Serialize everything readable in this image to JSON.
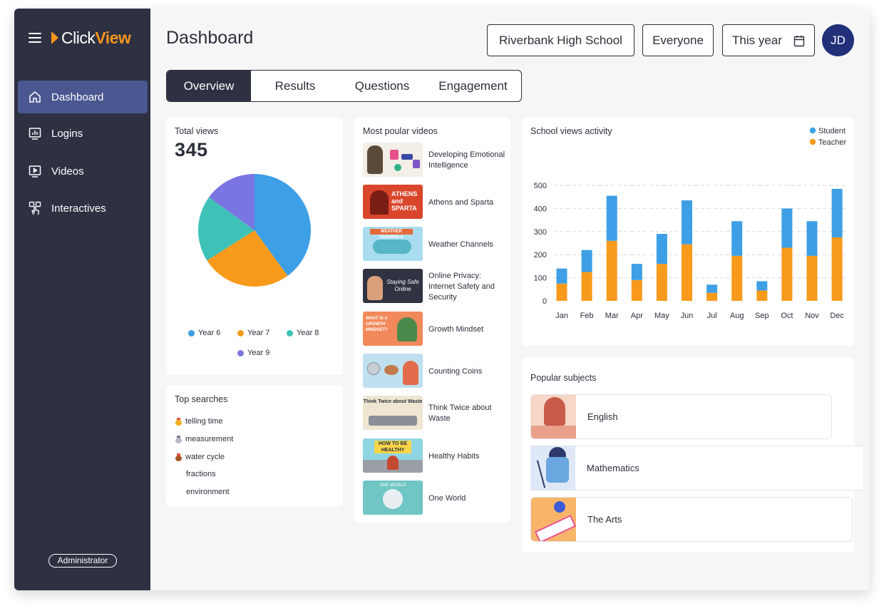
{
  "app": {
    "logo_prefix": "Click",
    "logo_suffix": "View",
    "menu_icon": "hamburger-icon"
  },
  "sidebar": {
    "items": [
      {
        "label": "Dashboard",
        "icon": "home-icon",
        "active": true
      },
      {
        "label": "Logins",
        "icon": "bar-chart-icon",
        "active": false
      },
      {
        "label": "Videos",
        "icon": "play-screen-icon",
        "active": false
      },
      {
        "label": "Interactives",
        "icon": "touch-icon",
        "active": false
      }
    ],
    "role_badge": "Administrator"
  },
  "header": {
    "title": "Dashboard",
    "school": "Riverbank High School",
    "audience": "Everyone",
    "period": "This year",
    "calendar_icon": "calendar-icon",
    "avatar_initials": "JD"
  },
  "tabs": [
    {
      "label": "Overview",
      "active": true
    },
    {
      "label": "Results",
      "active": false
    },
    {
      "label": "Questions",
      "active": false
    },
    {
      "label": "Engagement",
      "active": false
    }
  ],
  "total_views": {
    "title": "Total views",
    "value": "345",
    "legend": [
      {
        "label": "Year 6",
        "color": "#3d9fe6"
      },
      {
        "label": "Year 7",
        "color": "#f89a1c"
      },
      {
        "label": "Year 8",
        "color": "#3ec2b7"
      },
      {
        "label": "Year 9",
        "color": "#7b75e3"
      }
    ]
  },
  "top_searches": {
    "title": "Top searches",
    "items": [
      {
        "label": "telling time",
        "medal": "gold"
      },
      {
        "label": "measurement",
        "medal": "silver"
      },
      {
        "label": "water cycle",
        "medal": "bronze"
      },
      {
        "label": "fractions",
        "medal": ""
      },
      {
        "label": "environment",
        "medal": ""
      }
    ]
  },
  "popular_videos": {
    "title": "Most poular videos",
    "items": [
      {
        "title": "Developing Emotional Intelligence",
        "thumb_color": "#f3efe6"
      },
      {
        "title": "Athens and Sparta",
        "thumb_color": "#d9462c",
        "thumb_text": "ATHENS and SPARTA"
      },
      {
        "title": "Weather Channels",
        "thumb_color": "#a9dcef",
        "thumb_text": "WEATHER CHANNELS"
      },
      {
        "title": "Online Privacy: Internet Safety and Security",
        "thumb_color": "#2f3342",
        "thumb_text": "Staying Safe Online"
      },
      {
        "title": "Growth Mindset",
        "thumb_color": "#f2895a",
        "thumb_text": "WHAT IS A GROWTH MINDSET?"
      },
      {
        "title": "Counting Coins",
        "thumb_color": "#bfe0ef"
      },
      {
        "title": "Think Twice about Waste",
        "thumb_color": "#efe6d2",
        "thumb_text": "Think Twice about Waste"
      },
      {
        "title": "Healthy Habits",
        "thumb_color": "#8fd6e4",
        "thumb_text": "HOW TO BE HEALTHY"
      },
      {
        "title": "One World",
        "thumb_color": "#6fc6c4",
        "thumb_text": "ONE WORLD"
      }
    ]
  },
  "school_views": {
    "title": "School views activity"
  },
  "popular_subjects": {
    "title": "Popular subjects",
    "items": [
      {
        "label": "English",
        "thumb_color": "#f6d7c7"
      },
      {
        "label": "Mathematics",
        "thumb_color": "#dfe8f6"
      },
      {
        "label": "The Arts",
        "thumb_color": "#f8b56a"
      }
    ]
  },
  "chart_data": [
    {
      "type": "pie",
      "title": "",
      "labels": [
        "Year 6",
        "Year 7",
        "Year 8",
        "Year 9"
      ],
      "values": [
        40,
        26,
        19,
        15
      ],
      "colors": [
        "#3d9fe6",
        "#f89a1c",
        "#3ec2b7",
        "#7b75e3"
      ]
    },
    {
      "type": "bar",
      "stacked": true,
      "title": "School views activity",
      "categories": [
        "Jan",
        "Feb",
        "Mar",
        "Apr",
        "May",
        "Jun",
        "Jul",
        "Aug",
        "Sep",
        "Oct",
        "Nov",
        "Dec"
      ],
      "series": [
        {
          "name": "Teacher",
          "color": "#f89a1c",
          "values": [
            75,
            125,
            260,
            90,
            160,
            245,
            35,
            195,
            45,
            230,
            195,
            275
          ]
        },
        {
          "name": "Student",
          "color": "#3d9fe6",
          "values": [
            65,
            95,
            195,
            70,
            130,
            190,
            35,
            150,
            40,
            170,
            150,
            210
          ]
        }
      ],
      "yticks": [
        0,
        100,
        200,
        300,
        400,
        500
      ],
      "ylim": [
        0,
        500
      ],
      "grid": true,
      "legend_position": "top-right"
    }
  ]
}
